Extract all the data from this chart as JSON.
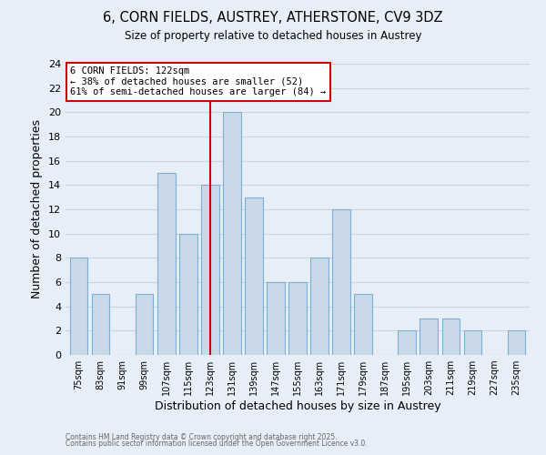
{
  "title": "6, CORN FIELDS, AUSTREY, ATHERSTONE, CV9 3DZ",
  "subtitle": "Size of property relative to detached houses in Austrey",
  "xlabel": "Distribution of detached houses by size in Austrey",
  "ylabel": "Number of detached properties",
  "bar_labels": [
    "75sqm",
    "83sqm",
    "91sqm",
    "99sqm",
    "107sqm",
    "115sqm",
    "123sqm",
    "131sqm",
    "139sqm",
    "147sqm",
    "155sqm",
    "163sqm",
    "171sqm",
    "179sqm",
    "187sqm",
    "195sqm",
    "203sqm",
    "211sqm",
    "219sqm",
    "227sqm",
    "235sqm"
  ],
  "bar_values": [
    8,
    5,
    0,
    5,
    15,
    10,
    14,
    20,
    13,
    6,
    6,
    8,
    12,
    5,
    0,
    2,
    3,
    3,
    2,
    0,
    2
  ],
  "bar_color": "#c9d9e8",
  "bar_edge_color": "#7bafd4",
  "highlight_index": 6,
  "highlight_line_color": "#cc0000",
  "annotation_title": "6 CORN FIELDS: 122sqm",
  "annotation_line1": "← 38% of detached houses are smaller (52)",
  "annotation_line2": "61% of semi-detached houses are larger (84) →",
  "annotation_box_color": "#ffffff",
  "annotation_box_edge": "#cc0000",
  "ylim": [
    0,
    24
  ],
  "yticks": [
    0,
    2,
    4,
    6,
    8,
    10,
    12,
    14,
    16,
    18,
    20,
    22,
    24
  ],
  "grid_color": "#c8d4e4",
  "background_color": "#e8eef8",
  "footer1": "Contains HM Land Registry data © Crown copyright and database right 2025.",
  "footer2": "Contains public sector information licensed under the Open Government Licence v3.0."
}
